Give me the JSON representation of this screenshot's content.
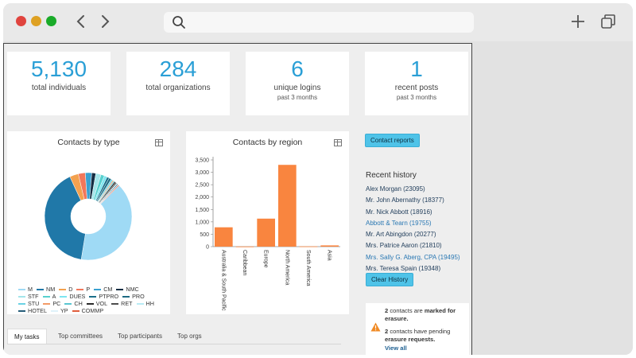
{
  "stats": [
    {
      "value": "5,130",
      "label": "total individuals",
      "sub": ""
    },
    {
      "value": "284",
      "label": "total organizations",
      "sub": ""
    },
    {
      "value": "6",
      "label": "unique logins",
      "sub": "past 3 months"
    },
    {
      "value": "1",
      "label": "recent posts",
      "sub": "past 3 months"
    }
  ],
  "charts": {
    "type_title": "Contacts by type",
    "region_title": "Contacts by region"
  },
  "chart_data": [
    {
      "type": "pie",
      "title": "Contacts by type",
      "categories": [
        "M",
        "NM",
        "D",
        "P",
        "CM",
        "NMC",
        "STF",
        "A",
        "DUES",
        "PTPRO",
        "PRO",
        "STU",
        "PC",
        "CH",
        "VOL",
        "RET",
        "HH",
        "HOTEL",
        "YP",
        "COMMP"
      ],
      "values": [
        1860,
        1880,
        150,
        120,
        110,
        70,
        90,
        60,
        50,
        40,
        40,
        30,
        20,
        20,
        25,
        20,
        15,
        15,
        10,
        15
      ],
      "colors": [
        "#9fdaf5",
        "#2078a8",
        "#f3a14f",
        "#f2775a",
        "#3aa1d0",
        "#152e44",
        "#a3e5ea",
        "#57d0ce",
        "#7de5f0",
        "#1b6f8a",
        "#1e6a82",
        "#6bd2e4",
        "#f39b67",
        "#59c5d1",
        "#2a2a2a",
        "#4d4d4d",
        "#b9ecf5",
        "#265d79",
        "#dff2fa",
        "#e05e3d"
      ],
      "legend_placement": "bottom"
    },
    {
      "type": "bar",
      "title": "Contacts by region",
      "categories": [
        "Australia & South Pacific",
        "Caribbean",
        "Europe",
        "North America",
        "South America",
        "Asia"
      ],
      "values": [
        780,
        5,
        1130,
        3300,
        10,
        50
      ],
      "ylim": [
        0,
        3500
      ],
      "yticks": [
        "3,500",
        "3,000",
        "2,500",
        "2,000",
        "1,500",
        "1,000",
        "500",
        "0"
      ],
      "grid": false,
      "bar_color": "#f9853f"
    }
  ],
  "buttons": {
    "contact_reports": "Contact reports",
    "clear_history": "Clear History"
  },
  "recent_history": {
    "title": "Recent history",
    "items": [
      {
        "text": "Alex Morgan (23095)",
        "link": false
      },
      {
        "text": "Mr. John Abernathy (18377)",
        "link": false
      },
      {
        "text": "Mr. Nick Abbott (18916)",
        "link": false
      },
      {
        "text": "Abbott & Tearn (19755)",
        "link": true
      },
      {
        "text": "Mr. Art Abingdon (20277)",
        "link": false
      },
      {
        "text": "Mrs. Patrice Aaron (21810)",
        "link": false
      },
      {
        "text": "Mrs. Sally G. Aberg, CPA (19495)",
        "link": true
      },
      {
        "text": "Mrs. Teresa Spain (19348)",
        "link": false
      }
    ]
  },
  "erasure": {
    "count1": "2",
    "text1a": " contacts are ",
    "text1b": "marked for erasure.",
    "count2": "2",
    "text2a": " contacts have pending ",
    "text2b": "erasure requests.",
    "view_all": "View all"
  },
  "tabs": [
    "My tasks",
    "Top committees",
    "Top participants",
    "Top orgs"
  ],
  "colors": {
    "accent": "#2a9fd6",
    "button": "#4fc3e8"
  }
}
